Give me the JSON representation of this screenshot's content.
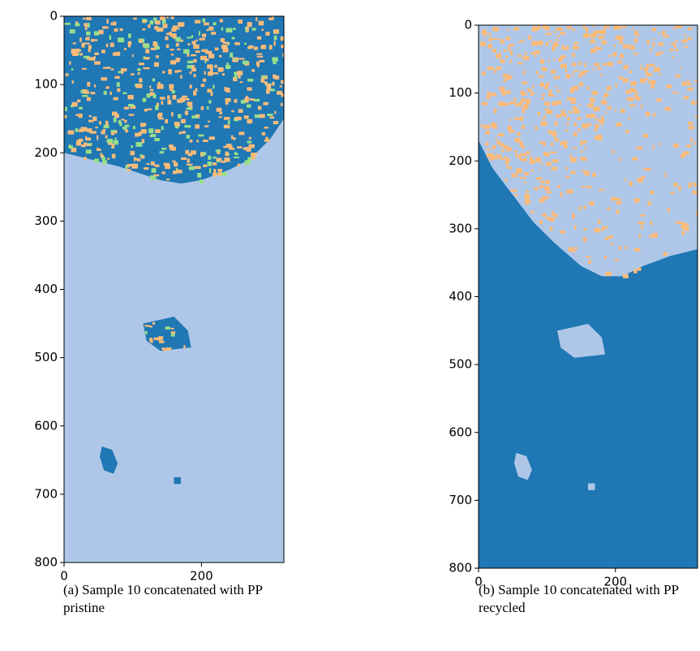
{
  "chart_data": [
    {
      "type": "image",
      "caption": "(a) Sample 10 concatenated with PP pristine",
      "xlim": [
        0,
        320
      ],
      "ylim": [
        800,
        0
      ],
      "xticks": [
        0,
        200
      ],
      "yticks": [
        0,
        100,
        200,
        300,
        400,
        500,
        600,
        700,
        800
      ]
    },
    {
      "type": "image",
      "caption": "(b) Sample 10 concatenated with PP recycled",
      "xlim": [
        0,
        320
      ],
      "ylim": [
        800,
        0
      ],
      "xticks": [
        0,
        200
      ],
      "yticks": [
        0,
        100,
        200,
        300,
        400,
        500,
        600,
        700,
        800
      ]
    }
  ]
}
